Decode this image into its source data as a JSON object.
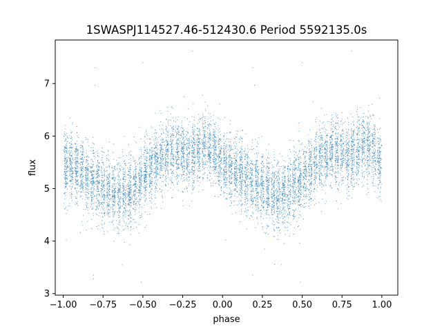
{
  "chart_data": {
    "type": "scatter",
    "title": "1SWASPJ114527.46-512430.6 Period 5592135.0s",
    "xlabel": "phase",
    "ylabel": "flux",
    "xlim": [
      -1.05,
      1.1
    ],
    "ylim": [
      2.97,
      7.83
    ],
    "xticks": [
      -1.0,
      -0.75,
      -0.5,
      -0.25,
      0.0,
      0.25,
      0.5,
      0.75,
      1.0
    ],
    "xtick_labels": [
      "−1.00",
      "−0.75",
      "−0.50",
      "−0.25",
      "0.00",
      "0.25",
      "0.50",
      "0.75",
      "1.00"
    ],
    "yticks": [
      3,
      4,
      5,
      6,
      7
    ],
    "ytick_labels": [
      "3",
      "4",
      "5",
      "6",
      "7"
    ],
    "grid": false,
    "legend": "none",
    "marker_color": "#1f77b4",
    "marker_size": "tiny",
    "series": [
      {
        "phase_range": [
          -1.0,
          1.0
        ],
        "point_count": 9000,
        "trend": {
          "x": [
            -1.0,
            -0.9,
            -0.8,
            -0.7,
            -0.65,
            -0.6,
            -0.5,
            -0.4,
            -0.3,
            -0.2,
            -0.12,
            -0.05,
            0.0,
            0.1,
            0.2,
            0.3,
            0.35,
            0.4,
            0.5,
            0.6,
            0.7,
            0.8,
            0.88,
            0.95,
            1.0
          ],
          "y": [
            5.45,
            5.35,
            5.1,
            4.95,
            4.85,
            4.9,
            5.2,
            5.55,
            5.75,
            5.6,
            5.85,
            5.7,
            5.45,
            5.35,
            5.1,
            4.95,
            4.85,
            4.9,
            5.2,
            5.55,
            5.75,
            5.6,
            5.85,
            5.7,
            5.45
          ]
        },
        "scatter_sd": 0.32,
        "outliers": [
          {
            "x": -0.8,
            "y": 7.3
          },
          {
            "x": -0.5,
            "y": 7.4
          },
          {
            "x": -0.19,
            "y": 7.62
          },
          {
            "x": -0.8,
            "y": 6.97
          },
          {
            "x": 0.19,
            "y": 7.3
          },
          {
            "x": 0.2,
            "y": 6.97
          },
          {
            "x": 0.5,
            "y": 7.4
          },
          {
            "x": 0.81,
            "y": 7.62
          },
          {
            "x": -0.81,
            "y": 3.35
          },
          {
            "x": -0.81,
            "y": 3.28
          },
          {
            "x": 0.19,
            "y": 3.35
          },
          {
            "x": -0.51,
            "y": 3.22
          },
          {
            "x": 0.49,
            "y": 3.22
          },
          {
            "x": -0.63,
            "y": 3.55
          },
          {
            "x": 0.37,
            "y": 3.55
          },
          {
            "x": -0.98,
            "y": 4.02
          },
          {
            "x": 0.02,
            "y": 4.02
          }
        ]
      }
    ]
  }
}
